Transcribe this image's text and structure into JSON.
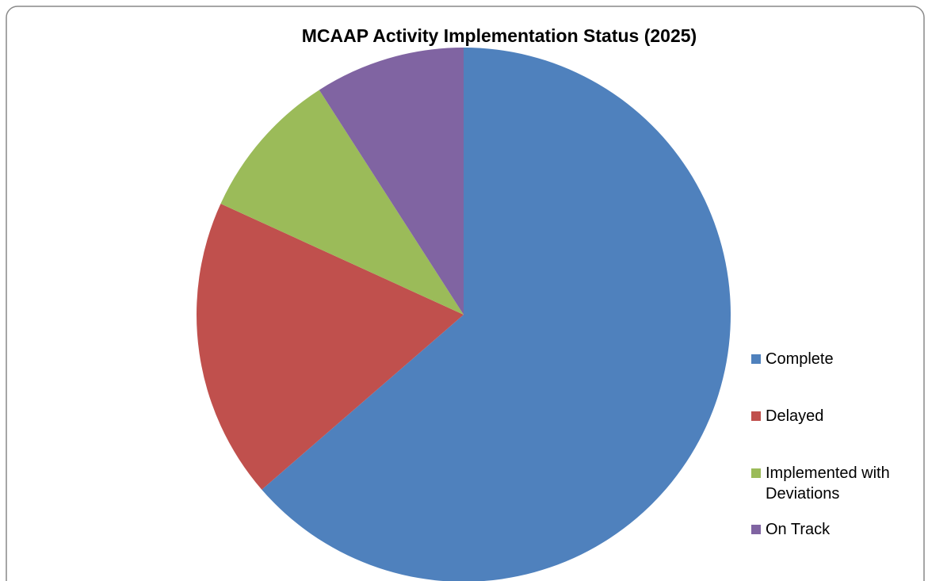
{
  "chart_data": {
    "type": "pie",
    "title": "MCAAP Activity Implementation Status (2025)",
    "categories": [
      "Complete",
      "Delayed",
      "Implemented with Deviations",
      "On Track"
    ],
    "values": [
      7,
      2,
      1,
      1
    ],
    "colors": [
      "#4f81bd",
      "#c0504d",
      "#9bbb59",
      "#8064a2"
    ],
    "legend": "right"
  }
}
